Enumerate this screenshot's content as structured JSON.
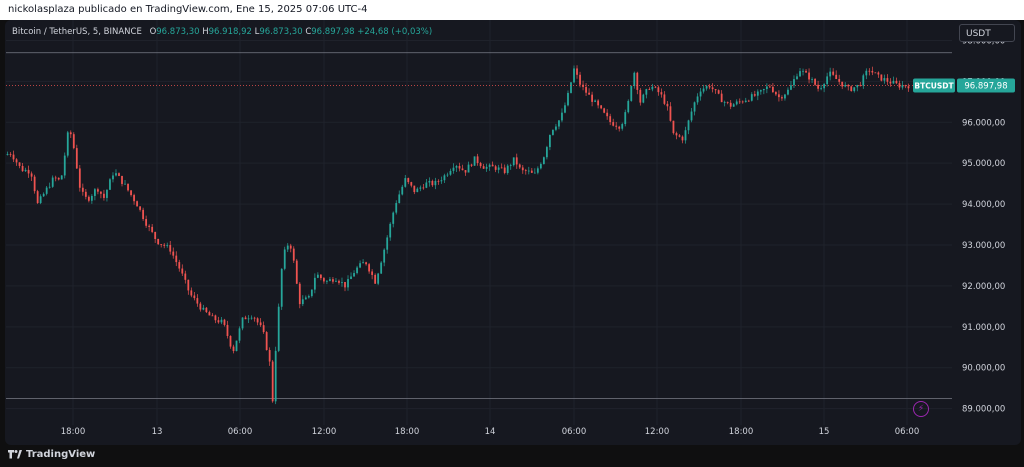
{
  "header": {
    "published_by": "nickolasplaza publicado en TradingView.com, Ene 15, 2025 07:06 UTC-4"
  },
  "legend": {
    "symbol": "Bitcoin / TetherUS, 5, BINANCE",
    "open_label": "O",
    "open": "96.873,30",
    "high_label": "H",
    "high": "96.918,92",
    "low_label": "L",
    "low": "96.873,30",
    "close_label": "C",
    "close": "96.897,98",
    "change": "+24,68 (+0,03%)"
  },
  "currency_button": "USDT",
  "price_tag": {
    "ticker": "BTCUSDT",
    "price": "96.897,98"
  },
  "footer": {
    "brand": "TradingView"
  },
  "colors": {
    "up": "#26a69a",
    "down": "#ef5350",
    "background": "#161820",
    "grid": "#1f222b",
    "price_line": "#ef5350",
    "alert_icon": "#9c27b0"
  },
  "chart_data": {
    "type": "candlestick",
    "x_tick_labels": [
      "18:00",
      "13",
      "06:00",
      "12:00",
      "18:00",
      "14",
      "06:00",
      "12:00",
      "18:00",
      "15",
      "06:00"
    ],
    "y_tick_labels": [
      "98.000,00",
      "97.000,00",
      "96.000,00",
      "95.000,00",
      "94.000,00",
      "93.000,00",
      "92.000,00",
      "91.000,00",
      "90.000,00",
      "89.000,00"
    ],
    "y_tick_values": [
      98000,
      97000,
      96000,
      95000,
      94000,
      93000,
      92000,
      91000,
      90000,
      89000
    ],
    "ylim": [
      88600,
      98500
    ],
    "grid": true,
    "last_price": 96897.98,
    "range_high_line": 97700,
    "range_low_line": 89250,
    "price_path": [
      [
        0,
        95200
      ],
      [
        0.02,
        95250
      ],
      [
        0.05,
        94850
      ],
      [
        0.08,
        94800
      ],
      [
        0.1,
        94000
      ],
      [
        0.13,
        94400
      ],
      [
        0.15,
        94650
      ],
      [
        0.17,
        94550
      ],
      [
        0.195,
        95900
      ],
      [
        0.21,
        95350
      ],
      [
        0.23,
        94300
      ],
      [
        0.25,
        94100
      ],
      [
        0.28,
        94400
      ],
      [
        0.3,
        94150
      ],
      [
        0.33,
        94800
      ],
      [
        0.36,
        94500
      ],
      [
        0.4,
        94000
      ],
      [
        0.43,
        93500
      ],
      [
        0.46,
        93100
      ],
      [
        0.5,
        92900
      ],
      [
        0.53,
        92400
      ],
      [
        0.56,
        91800
      ],
      [
        0.6,
        91400
      ],
      [
        0.63,
        91200
      ],
      [
        0.66,
        91100
      ],
      [
        0.69,
        90400
      ],
      [
        0.72,
        91200
      ],
      [
        0.75,
        91300
      ],
      [
        0.78,
        90900
      ],
      [
        0.8,
        90200
      ],
      [
        0.81,
        89200
      ],
      [
        0.82,
        90600
      ],
      [
        0.84,
        92700
      ],
      [
        0.86,
        93100
      ],
      [
        0.87,
        92800
      ],
      [
        0.89,
        91600
      ],
      [
        0.92,
        91700
      ],
      [
        0.94,
        92300
      ],
      [
        0.97,
        92100
      ],
      [
        1.0,
        92200
      ],
      [
        1.03,
        92000
      ],
      [
        1.06,
        92400
      ],
      [
        1.09,
        92600
      ],
      [
        1.12,
        92100
      ],
      [
        1.15,
        93000
      ],
      [
        1.18,
        94000
      ],
      [
        1.21,
        94600
      ],
      [
        1.24,
        94300
      ],
      [
        1.27,
        94500
      ],
      [
        1.3,
        94500
      ],
      [
        1.33,
        94700
      ],
      [
        1.36,
        95000
      ],
      [
        1.39,
        94800
      ],
      [
        1.42,
        95100
      ],
      [
        1.45,
        94900
      ],
      [
        1.48,
        94900
      ],
      [
        1.51,
        94800
      ],
      [
        1.54,
        95100
      ],
      [
        1.56,
        94800
      ],
      [
        1.58,
        94800
      ],
      [
        1.6,
        94700
      ],
      [
        1.63,
        95200
      ],
      [
        1.65,
        95800
      ],
      [
        1.68,
        96100
      ],
      [
        1.7,
        96600
      ],
      [
        1.72,
        97300
      ],
      [
        1.74,
        96900
      ],
      [
        1.77,
        96600
      ],
      [
        1.8,
        96300
      ],
      [
        1.83,
        96000
      ],
      [
        1.86,
        95900
      ],
      [
        1.88,
        96300
      ],
      [
        1.9,
        97300
      ],
      [
        1.92,
        96500
      ],
      [
        1.95,
        96900
      ],
      [
        1.98,
        96700
      ],
      [
        2.0,
        96400
      ],
      [
        2.02,
        95700
      ],
      [
        2.05,
        95600
      ],
      [
        2.08,
        96400
      ],
      [
        2.1,
        96800
      ],
      [
        2.13,
        96900
      ],
      [
        2.16,
        96600
      ],
      [
        2.19,
        96400
      ],
      [
        2.22,
        96500
      ],
      [
        2.25,
        96600
      ],
      [
        2.28,
        96700
      ],
      [
        2.31,
        96900
      ],
      [
        2.34,
        96600
      ],
      [
        2.37,
        96800
      ],
      [
        2.4,
        97300
      ],
      [
        2.43,
        97100
      ],
      [
        2.46,
        96800
      ],
      [
        2.49,
        97200
      ],
      [
        2.52,
        97000
      ],
      [
        2.55,
        96800
      ],
      [
        2.58,
        96900
      ],
      [
        2.61,
        97300
      ],
      [
        2.64,
        97100
      ],
      [
        2.67,
        97000
      ],
      [
        2.7,
        96900
      ],
      [
        2.73,
        96900
      ]
    ]
  }
}
